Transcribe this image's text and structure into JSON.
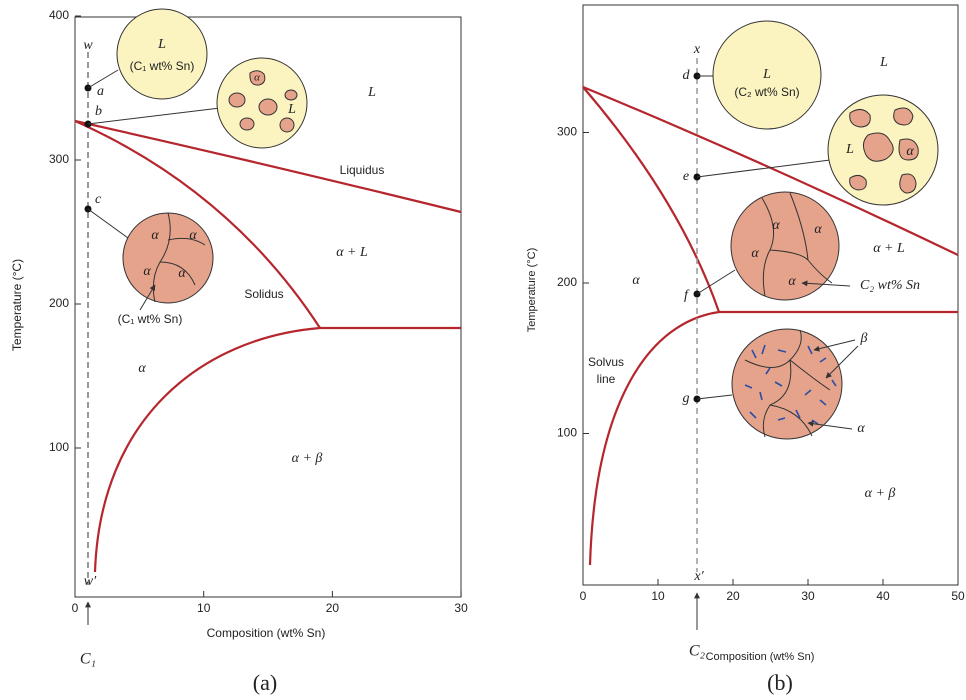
{
  "panels": [
    {
      "caption": "(a)",
      "x_axis_label": "Composition (wt% Sn)",
      "y_axis_label": "Temperature (°C)",
      "x_ticks": [
        0,
        10,
        20,
        30
      ],
      "y_ticks": [
        100,
        200,
        300,
        400
      ],
      "composition_marker": "C₁",
      "line_top": "w",
      "line_bottom": "w′",
      "points": [
        "a",
        "b",
        "c"
      ],
      "liquid_circle": {
        "label": "L",
        "composition": "(C₁ wt% Sn)"
      },
      "mixed_circle": {
        "solid": "α",
        "liquid": "L"
      },
      "solid_circle": {
        "grains": [
          "α",
          "α",
          "α",
          "α"
        ],
        "composition": "(C₁ wt% Sn)"
      },
      "regions": {
        "liquid": "L",
        "liquidus": "Liquidus",
        "alpha_liquid": "α + L",
        "solidus": "Solidus",
        "alpha": "α",
        "alpha_beta": "α + β"
      }
    },
    {
      "caption": "(b)",
      "x_axis_label": "Composition (wt% Sn)",
      "y_axis_label": "Temperature (°C)",
      "x_ticks": [
        0,
        10,
        20,
        30,
        40,
        50
      ],
      "y_ticks": [
        100,
        200,
        300
      ],
      "composition_marker": "C₂",
      "line_top": "x",
      "line_bottom": "x′",
      "points": [
        "d",
        "e",
        "f",
        "g"
      ],
      "liquid_circle": {
        "label": "L",
        "composition": "(C₂ wt% Sn)"
      },
      "mixed_circle": {
        "solid": "α",
        "liquid": "L"
      },
      "solid_circle": {
        "grains": [
          "α",
          "α",
          "α",
          "α"
        ],
        "composition": "C₂ wt% Sn"
      },
      "precipitate_circle": {
        "beta": "β",
        "alpha": "α"
      },
      "regions": {
        "liquid": "L",
        "alpha_liquid": "α + L",
        "alpha": "α",
        "solvus": "Solvus",
        "solvus_2": "line",
        "alpha_beta": "α + β"
      }
    }
  ]
}
